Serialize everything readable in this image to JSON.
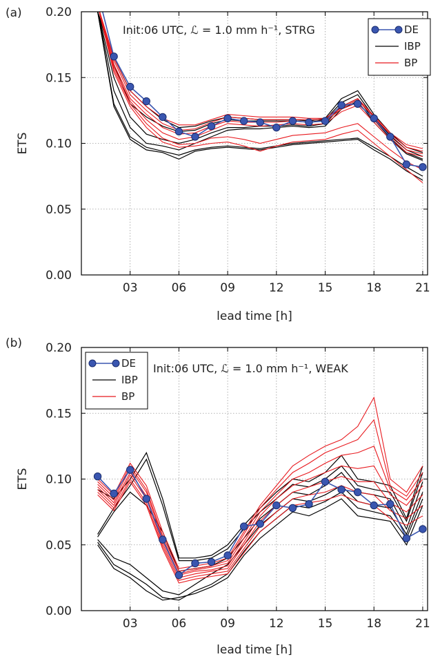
{
  "chart_data": [
    {
      "type": "line",
      "panel_label": "(a)",
      "annotation": "Init:06 UTC, ℒ = 1.0 mm h⁻¹, STRG",
      "xlabel": "lead time [h]",
      "ylabel": "ETS",
      "xlim": [
        0,
        21.3
      ],
      "ylim": [
        0,
        0.2
      ],
      "xticks": [
        3,
        6,
        9,
        12,
        15,
        18,
        21
      ],
      "xtick_labels": [
        "03",
        "06",
        "09",
        "12",
        "15",
        "18",
        "21"
      ],
      "yticks": [
        0,
        0.05,
        0.1,
        0.15,
        0.2
      ],
      "ytick_labels": [
        "0.00",
        "0.05",
        "0.10",
        "0.15",
        "0.20"
      ],
      "grid": true,
      "legend_position": "top-right",
      "colors": {
        "DE": "#3a56b0",
        "DE_edge": "#1a2d6e",
        "IBP": "#000000",
        "BP": "#e8191e"
      },
      "legend": [
        "DE",
        "IBP",
        "BP"
      ],
      "x": [
        1,
        2,
        3,
        4,
        5,
        6,
        7,
        8,
        9,
        10,
        11,
        12,
        13,
        14,
        15,
        16,
        17,
        18,
        19,
        20,
        21
      ],
      "series": [
        {
          "name": "DE",
          "style": "markers",
          "values": [
            0.215,
            0.166,
            0.143,
            0.132,
            0.12,
            0.109,
            0.105,
            0.113,
            0.119,
            0.117,
            0.116,
            0.112,
            0.117,
            0.116,
            0.117,
            0.129,
            0.13,
            0.119,
            0.105,
            0.084,
            0.082
          ]
        },
        {
          "name": "IBP",
          "values": [
            0.2,
            0.165,
            0.14,
            0.128,
            0.118,
            0.112,
            0.113,
            0.117,
            0.12,
            0.119,
            0.118,
            0.118,
            0.118,
            0.117,
            0.119,
            0.134,
            0.14,
            0.122,
            0.108,
            0.097,
            0.093
          ]
        },
        {
          "name": "IBP",
          "values": [
            0.2,
            0.16,
            0.13,
            0.12,
            0.113,
            0.109,
            0.11,
            0.115,
            0.118,
            0.117,
            0.117,
            0.117,
            0.117,
            0.116,
            0.118,
            0.131,
            0.137,
            0.12,
            0.106,
            0.095,
            0.09
          ]
        },
        {
          "name": "IBP",
          "values": [
            0.2,
            0.15,
            0.12,
            0.107,
            0.103,
            0.1,
            0.103,
            0.108,
            0.112,
            0.112,
            0.113,
            0.113,
            0.114,
            0.113,
            0.115,
            0.128,
            0.134,
            0.118,
            0.104,
            0.093,
            0.088
          ]
        },
        {
          "name": "IBP",
          "values": [
            0.2,
            0.14,
            0.112,
            0.1,
            0.098,
            0.095,
            0.1,
            0.105,
            0.11,
            0.111,
            0.111,
            0.112,
            0.113,
            0.112,
            0.113,
            0.126,
            0.132,
            0.116,
            0.103,
            0.092,
            0.087
          ]
        },
        {
          "name": "IBP",
          "values": [
            0.2,
            0.13,
            0.105,
            0.097,
            0.094,
            0.091,
            0.095,
            0.097,
            0.098,
            0.097,
            0.096,
            0.098,
            0.1,
            0.101,
            0.102,
            0.103,
            0.104,
            0.097,
            0.09,
            0.082,
            0.075
          ]
        },
        {
          "name": "IBP",
          "values": [
            0.2,
            0.128,
            0.103,
            0.095,
            0.093,
            0.088,
            0.094,
            0.096,
            0.097,
            0.096,
            0.095,
            0.097,
            0.099,
            0.1,
            0.101,
            0.102,
            0.103,
            0.095,
            0.088,
            0.079,
            0.072
          ]
        },
        {
          "name": "BP",
          "values": [
            0.205,
            0.165,
            0.14,
            0.128,
            0.119,
            0.114,
            0.114,
            0.118,
            0.122,
            0.121,
            0.12,
            0.12,
            0.12,
            0.119,
            0.119,
            0.128,
            0.134,
            0.121,
            0.108,
            0.099,
            0.096
          ]
        },
        {
          "name": "BP",
          "values": [
            0.205,
            0.163,
            0.137,
            0.125,
            0.115,
            0.11,
            0.111,
            0.116,
            0.12,
            0.119,
            0.118,
            0.118,
            0.118,
            0.118,
            0.118,
            0.127,
            0.133,
            0.12,
            0.107,
            0.097,
            0.094
          ]
        },
        {
          "name": "BP",
          "values": [
            0.205,
            0.16,
            0.134,
            0.122,
            0.112,
            0.107,
            0.108,
            0.113,
            0.117,
            0.116,
            0.116,
            0.116,
            0.117,
            0.116,
            0.117,
            0.126,
            0.131,
            0.118,
            0.105,
            0.095,
            0.092
          ]
        },
        {
          "name": "BP",
          "values": [
            0.205,
            0.158,
            0.132,
            0.118,
            0.108,
            0.103,
            0.105,
            0.11,
            0.115,
            0.114,
            0.113,
            0.114,
            0.115,
            0.114,
            0.115,
            0.124,
            0.129,
            0.116,
            0.103,
            0.093,
            0.09
          ]
        },
        {
          "name": "BP",
          "values": [
            0.205,
            0.156,
            0.13,
            0.115,
            0.104,
            0.099,
            0.1,
            0.104,
            0.105,
            0.103,
            0.1,
            0.103,
            0.106,
            0.107,
            0.108,
            0.112,
            0.115,
            0.105,
            0.095,
            0.086,
            0.08
          ]
        },
        {
          "name": "BP",
          "values": [
            0.205,
            0.154,
            0.128,
            0.112,
            0.101,
            0.097,
            0.098,
            0.1,
            0.101,
            0.098,
            0.094,
            0.098,
            0.101,
            0.102,
            0.103,
            0.107,
            0.11,
            0.1,
            0.09,
            0.08,
            0.07
          ]
        }
      ]
    },
    {
      "type": "line",
      "panel_label": "(b)",
      "annotation": "Init:06 UTC, ℒ = 1.0 mm h⁻¹, WEAK",
      "xlabel": "lead time [h]",
      "ylabel": "ETS",
      "xlim": [
        0,
        21.3
      ],
      "ylim": [
        0,
        0.2
      ],
      "xticks": [
        3,
        6,
        9,
        12,
        15,
        18,
        21
      ],
      "xtick_labels": [
        "03",
        "06",
        "09",
        "12",
        "15",
        "18",
        "21"
      ],
      "yticks": [
        0,
        0.05,
        0.1,
        0.15,
        0.2
      ],
      "ytick_labels": [
        "0.00",
        "0.05",
        "0.10",
        "0.15",
        "0.20"
      ],
      "grid": true,
      "legend_position": "top-left",
      "colors": {
        "DE": "#3a56b0",
        "DE_edge": "#1a2d6e",
        "IBP": "#000000",
        "BP": "#e8191e"
      },
      "legend": [
        "DE",
        "IBP",
        "BP"
      ],
      "x": [
        1,
        2,
        3,
        4,
        5,
        6,
        7,
        8,
        9,
        10,
        11,
        12,
        13,
        14,
        15,
        16,
        17,
        18,
        19,
        20,
        21
      ],
      "series": [
        {
          "name": "DE",
          "style": "markers",
          "values": [
            0.102,
            0.089,
            0.107,
            0.085,
            0.054,
            0.027,
            0.036,
            0.037,
            0.042,
            0.064,
            0.066,
            0.08,
            0.078,
            0.081,
            0.098,
            0.092,
            0.09,
            0.08,
            0.081,
            0.055,
            0.062
          ]
        },
        {
          "name": "IBP",
          "values": [
            0.092,
            0.085,
            0.1,
            0.12,
            0.085,
            0.04,
            0.04,
            0.042,
            0.05,
            0.065,
            0.078,
            0.09,
            0.1,
            0.098,
            0.105,
            0.118,
            0.1,
            0.098,
            0.095,
            0.07,
            0.11
          ]
        },
        {
          "name": "IBP",
          "values": [
            0.058,
            0.078,
            0.095,
            0.115,
            0.08,
            0.038,
            0.038,
            0.04,
            0.047,
            0.062,
            0.075,
            0.085,
            0.096,
            0.094,
            0.1,
            0.11,
            0.095,
            0.092,
            0.09,
            0.068,
            0.105
          ]
        },
        {
          "name": "IBP",
          "values": [
            0.056,
            0.075,
            0.09,
            0.08,
            0.06,
            0.03,
            0.032,
            0.034,
            0.04,
            0.055,
            0.07,
            0.08,
            0.09,
            0.088,
            0.095,
            0.105,
            0.09,
            0.088,
            0.085,
            0.062,
            0.098
          ]
        },
        {
          "name": "IBP",
          "values": [
            0.054,
            0.04,
            0.035,
            0.025,
            0.015,
            0.012,
            0.02,
            0.028,
            0.035,
            0.05,
            0.065,
            0.075,
            0.085,
            0.083,
            0.088,
            0.095,
            0.083,
            0.08,
            0.078,
            0.058,
            0.09
          ]
        },
        {
          "name": "IBP",
          "values": [
            0.052,
            0.035,
            0.028,
            0.02,
            0.01,
            0.008,
            0.015,
            0.02,
            0.028,
            0.045,
            0.06,
            0.07,
            0.08,
            0.078,
            0.083,
            0.09,
            0.078,
            0.075,
            0.072,
            0.055,
            0.085
          ]
        },
        {
          "name": "IBP",
          "values": [
            0.05,
            0.032,
            0.025,
            0.015,
            0.008,
            0.01,
            0.013,
            0.018,
            0.025,
            0.042,
            0.055,
            0.065,
            0.075,
            0.072,
            0.078,
            0.085,
            0.072,
            0.07,
            0.068,
            0.05,
            0.08
          ]
        },
        {
          "name": "BP",
          "values": [
            0.1,
            0.088,
            0.112,
            0.095,
            0.06,
            0.032,
            0.034,
            0.036,
            0.04,
            0.06,
            0.08,
            0.095,
            0.11,
            0.118,
            0.125,
            0.13,
            0.14,
            0.162,
            0.1,
            0.09,
            0.11
          ]
        },
        {
          "name": "BP",
          "values": [
            0.098,
            0.086,
            0.11,
            0.092,
            0.057,
            0.03,
            0.032,
            0.034,
            0.038,
            0.058,
            0.078,
            0.092,
            0.105,
            0.112,
            0.12,
            0.125,
            0.13,
            0.145,
            0.095,
            0.087,
            0.105
          ]
        },
        {
          "name": "BP",
          "values": [
            0.096,
            0.084,
            0.108,
            0.09,
            0.055,
            0.028,
            0.031,
            0.033,
            0.036,
            0.055,
            0.075,
            0.088,
            0.1,
            0.105,
            0.112,
            0.118,
            0.12,
            0.125,
            0.092,
            0.084,
            0.1
          ]
        },
        {
          "name": "BP",
          "values": [
            0.094,
            0.082,
            0.105,
            0.087,
            0.053,
            0.027,
            0.03,
            0.031,
            0.034,
            0.052,
            0.072,
            0.085,
            0.095,
            0.1,
            0.105,
            0.11,
            0.108,
            0.11,
            0.088,
            0.08,
            0.095
          ]
        },
        {
          "name": "BP",
          "values": [
            0.092,
            0.08,
            0.103,
            0.085,
            0.051,
            0.025,
            0.028,
            0.03,
            0.032,
            0.05,
            0.068,
            0.08,
            0.09,
            0.094,
            0.098,
            0.102,
            0.098,
            0.098,
            0.082,
            0.075,
            0.088
          ]
        },
        {
          "name": "BP",
          "values": [
            0.09,
            0.078,
            0.1,
            0.082,
            0.049,
            0.023,
            0.026,
            0.028,
            0.03,
            0.047,
            0.064,
            0.075,
            0.085,
            0.088,
            0.09,
            0.095,
            0.09,
            0.088,
            0.076,
            0.07,
            0.08
          ]
        },
        {
          "name": "BP",
          "values": [
            0.088,
            0.076,
            0.098,
            0.08,
            0.047,
            0.021,
            0.024,
            0.026,
            0.028,
            0.044,
            0.06,
            0.07,
            0.08,
            0.082,
            0.084,
            0.088,
            0.083,
            0.08,
            0.07,
            0.065,
            0.072
          ]
        }
      ]
    }
  ]
}
